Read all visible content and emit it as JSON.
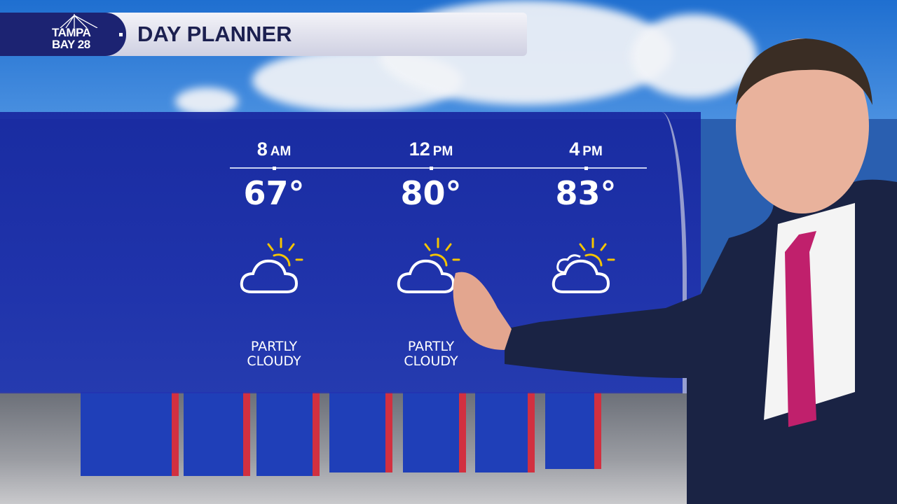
{
  "header": {
    "logo": "TAMPA BAY 28 abc",
    "title": "DAY PLANNER"
  },
  "forecast": [
    {
      "hour": "8",
      "period": "AM",
      "temp": "67°",
      "icon": "partly-cloudy-icon",
      "condition": "PARTLY CLOUDY"
    },
    {
      "hour": "12",
      "period": "PM",
      "temp": "80°",
      "icon": "partly-cloudy-icon",
      "condition": "PARTLY CLOUDY"
    },
    {
      "hour": "4",
      "period": "PM",
      "temp": "83°",
      "icon": "partly-cloudy-icon"
    }
  ],
  "colors": {
    "panel": "#1c2aa8",
    "header_text": "#1c2050",
    "sun": "#f4c400",
    "logo_bg": "#1c2372"
  }
}
